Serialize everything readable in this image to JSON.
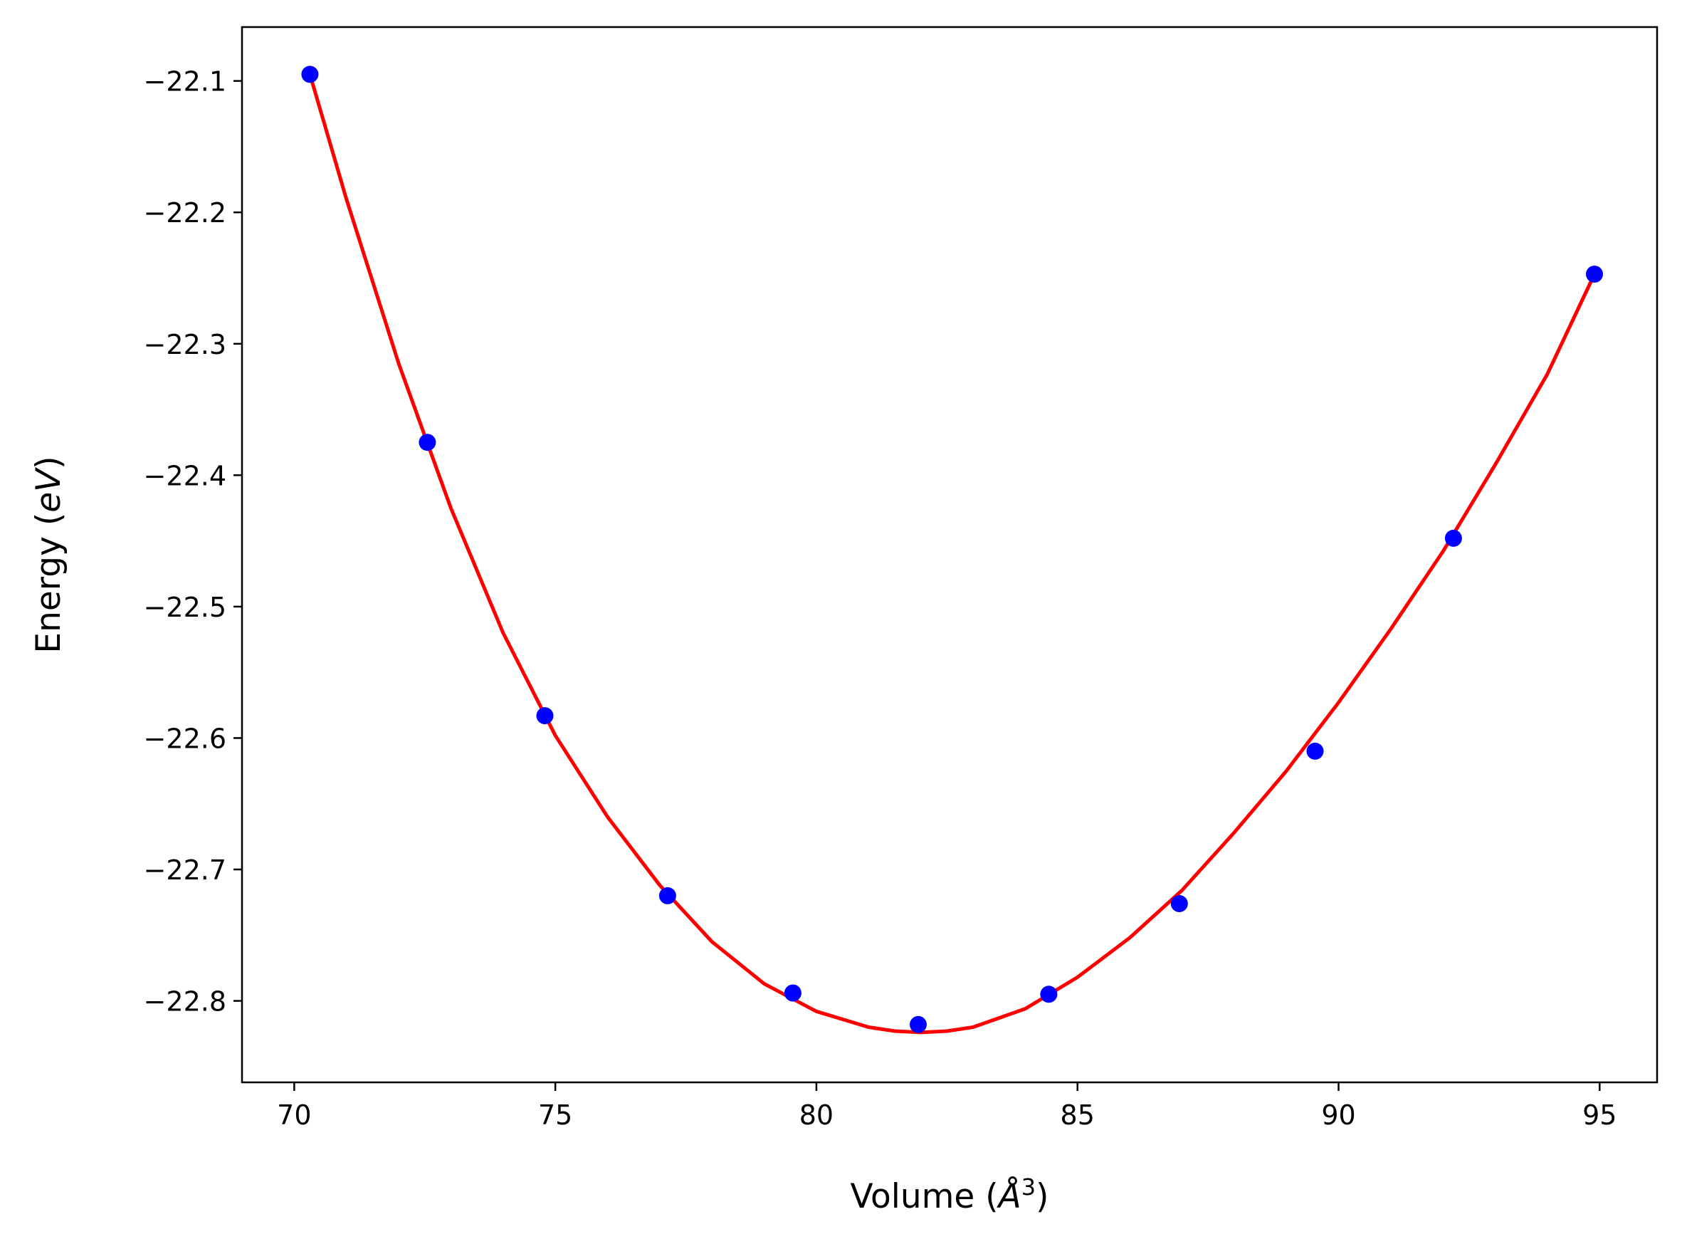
{
  "chart_data": {
    "type": "scatter",
    "title": "",
    "xlabel": {
      "prefix": "Volume (",
      "symbol": "Å",
      "exponent": "3",
      "suffix": ")"
    },
    "ylabel": {
      "prefix": "Energy (",
      "unit": "eV",
      "suffix": ")"
    },
    "xlim": [
      69.0,
      96.1
    ],
    "ylim": [
      -22.862,
      -22.059
    ],
    "x_ticks": [
      70,
      75,
      80,
      85,
      90,
      95
    ],
    "x_tick_labels": [
      "70",
      "75",
      "80",
      "85",
      "90",
      "95"
    ],
    "y_ticks": [
      -22.1,
      -22.2,
      -22.3,
      -22.4,
      -22.5,
      -22.6,
      -22.7,
      -22.8
    ],
    "y_tick_labels": [
      "−22.1",
      "−22.2",
      "−22.3",
      "−22.4",
      "−22.5",
      "−22.6",
      "−22.7",
      "−22.8"
    ],
    "grid": false,
    "legend": "none",
    "series": [
      {
        "kind": "points",
        "color": "#0000ff",
        "x": [
          70.3,
          72.55,
          74.8,
          77.15,
          79.55,
          81.95,
          84.45,
          86.95,
          89.55,
          92.2,
          94.9
        ],
        "y": [
          -22.095,
          -22.375,
          -22.583,
          -22.72,
          -22.794,
          -22.818,
          -22.795,
          -22.726,
          -22.61,
          -22.448,
          -22.247
        ]
      },
      {
        "kind": "fit",
        "color": "#ff0000",
        "x": [
          70.3,
          71.0,
          72.0,
          73.0,
          74.0,
          75.0,
          76.0,
          77.0,
          78.0,
          79.0,
          80.0,
          81.0,
          81.5,
          82.0,
          82.5,
          83.0,
          84.0,
          85.0,
          86.0,
          87.0,
          88.0,
          89.0,
          90.0,
          91.0,
          92.0,
          93.0,
          94.0,
          94.9
        ],
        "y": [
          -22.095,
          -22.19,
          -22.315,
          -22.425,
          -22.52,
          -22.598,
          -22.66,
          -22.712,
          -22.755,
          -22.787,
          -22.808,
          -22.82,
          -22.823,
          -22.824,
          -22.823,
          -22.82,
          -22.806,
          -22.782,
          -22.752,
          -22.716,
          -22.672,
          -22.625,
          -22.573,
          -22.517,
          -22.458,
          -22.392,
          -22.323,
          -22.247
        ]
      }
    ]
  }
}
